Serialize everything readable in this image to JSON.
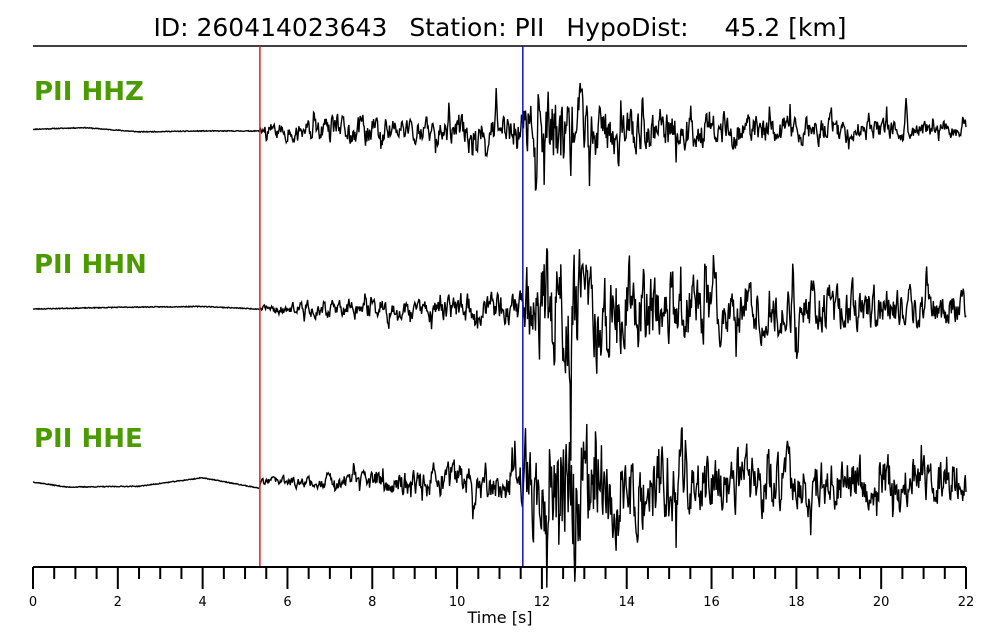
{
  "header": {
    "id_label": "ID:",
    "id_value": "260414023643",
    "station_label": "Station:",
    "station_value": "PII",
    "hypodist_label": "HypoDist:",
    "hypodist_value": "45.2",
    "hypodist_unit": "[km]"
  },
  "colors": {
    "label": "#4a9a00",
    "p_pick": "#e02020",
    "s_pick": "#1010c0",
    "trace": "#000000"
  },
  "chart_data": {
    "type": "line",
    "xlabel": "Time [s]",
    "xlim": [
      0,
      22
    ],
    "major_ticks": [
      0,
      2,
      4,
      6,
      8,
      10,
      12,
      14,
      16,
      18,
      20,
      22
    ],
    "minor_tick_step": 0.5,
    "picks": [
      {
        "phase": "P",
        "time": 5.35,
        "color": "#e02020"
      },
      {
        "phase": "S",
        "time": 11.55,
        "color": "#1010c0"
      }
    ],
    "series": [
      {
        "name": "PII HHZ",
        "envelope": [
          [
            0,
            0.02
          ],
          [
            5.3,
            0.02
          ],
          [
            5.4,
            0.09
          ],
          [
            7,
            0.14
          ],
          [
            8,
            0.2
          ],
          [
            9,
            0.14
          ],
          [
            11.2,
            0.2
          ],
          [
            11.6,
            0.32
          ],
          [
            12.5,
            0.55
          ],
          [
            13.5,
            0.3
          ],
          [
            16,
            0.2
          ],
          [
            22,
            0.1
          ]
        ],
        "seed": 11,
        "drift": [
          [
            0,
            0.02
          ],
          [
            1.2,
            0.04
          ],
          [
            2.5,
            -0.01
          ],
          [
            4,
            0.0
          ],
          [
            5.3,
            0.0
          ]
        ]
      },
      {
        "name": "PII HHN",
        "envelope": [
          [
            0,
            0.02
          ],
          [
            5.3,
            0.02
          ],
          [
            5.4,
            0.05
          ],
          [
            7.5,
            0.12
          ],
          [
            9,
            0.1
          ],
          [
            10,
            0.16
          ],
          [
            11.5,
            0.2
          ],
          [
            11.6,
            0.55
          ],
          [
            12.5,
            0.75
          ],
          [
            14,
            0.5
          ],
          [
            16,
            0.35
          ],
          [
            22,
            0.2
          ]
        ],
        "seed": 23,
        "drift": [
          [
            0,
            0.0
          ],
          [
            2,
            0.02
          ],
          [
            4,
            0.03
          ],
          [
            5.3,
            0.0
          ]
        ]
      },
      {
        "name": "PII HHE",
        "envelope": [
          [
            0,
            0.02
          ],
          [
            5.3,
            0.02
          ],
          [
            5.4,
            0.05
          ],
          [
            7,
            0.08
          ],
          [
            9,
            0.18
          ],
          [
            11.5,
            0.25
          ],
          [
            11.6,
            0.55
          ],
          [
            12.5,
            0.75
          ],
          [
            14,
            0.6
          ],
          [
            16,
            0.4
          ],
          [
            22,
            0.25
          ]
        ],
        "seed": 37,
        "drift": [
          [
            0,
            0.0
          ],
          [
            0.8,
            -0.06
          ],
          [
            2.5,
            -0.05
          ],
          [
            4,
            0.05
          ],
          [
            5.3,
            -0.07
          ]
        ]
      }
    ]
  }
}
